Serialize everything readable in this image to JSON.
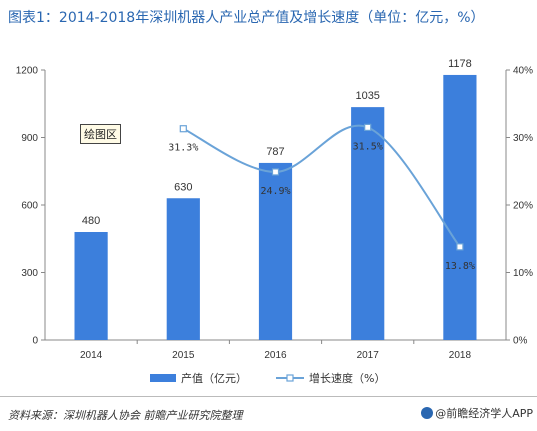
{
  "title": "图表1：2014-2018年深圳机器人产业总产值及增长速度（单位：亿元，%）",
  "plot_area_label": "绘图区",
  "source": "资料来源：深圳机器人协会  前瞻产业研究院整理",
  "brand": "@前瞻经济学人APP",
  "chart_data": {
    "type": "bar",
    "categories": [
      "2014",
      "2015",
      "2016",
      "2017",
      "2018"
    ],
    "series": [
      {
        "name": "产值（亿元）",
        "type": "bar",
        "axis": "left",
        "color": "#3c7fdc",
        "values": [
          480,
          630,
          787,
          1035,
          1178
        ],
        "labels": [
          "480",
          "630",
          "787",
          "1035",
          "1178"
        ]
      },
      {
        "name": "增长速度（%）",
        "type": "line",
        "axis": "right",
        "color": "#6aa3d8",
        "values": [
          null,
          31.3,
          24.9,
          31.5,
          13.8
        ],
        "labels": [
          "",
          "31.3%",
          "24.9%",
          "31.5%",
          "13.8%"
        ]
      }
    ],
    "y_left": {
      "min": 0,
      "max": 1200,
      "ticks": [
        "0",
        "300",
        "600",
        "900",
        "1200"
      ]
    },
    "y_right": {
      "min": 0,
      "max": 40,
      "ticks": [
        "0%",
        "10%",
        "20%",
        "30%",
        "40%"
      ]
    },
    "legend_position": "bottom",
    "grid": false
  }
}
